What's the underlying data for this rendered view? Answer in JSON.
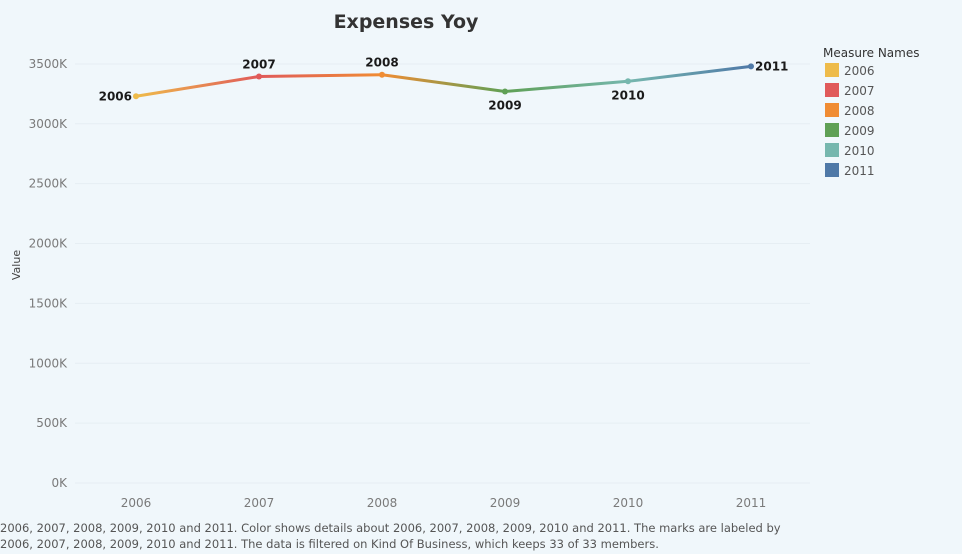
{
  "chart_data": {
    "type": "line",
    "title": "Expenses Yoy",
    "xlabel": "",
    "ylabel": "Value",
    "categories": [
      "2006",
      "2007",
      "2008",
      "2009",
      "2010",
      "2011"
    ],
    "values": [
      3230000,
      3395000,
      3410000,
      3270000,
      3355000,
      3480000
    ],
    "data_labels": [
      "2006",
      "2007",
      "2008",
      "2009",
      "2010",
      "2011"
    ],
    "colors": [
      "#eebb4a",
      "#e05a5a",
      "#f08c33",
      "#5fa055",
      "#76b7ae",
      "#4f79a7"
    ],
    "ylim": [
      0,
      3700000
    ],
    "y_ticks": [
      0,
      500000,
      1000000,
      1500000,
      2000000,
      2500000,
      3000000,
      3500000
    ],
    "y_tick_labels": [
      "0K",
      "500K",
      "1000K",
      "1500K",
      "2000K",
      "2500K",
      "3000K",
      "3500K"
    ],
    "grid": true,
    "legend": {
      "title": "Measure Names",
      "placement": "right",
      "entries": [
        "2006",
        "2007",
        "2008",
        "2009",
        "2010",
        "2011"
      ]
    }
  },
  "caption": "2006, 2007, 2008, 2009, 2010 and 2011.  Color shows details about 2006, 2007, 2008, 2009, 2010 and 2011.  The marks are labeled by 2006, 2007, 2008, 2009, 2010 and 2011. The data is filtered on Kind Of Business, which keeps 33 of 33 members."
}
